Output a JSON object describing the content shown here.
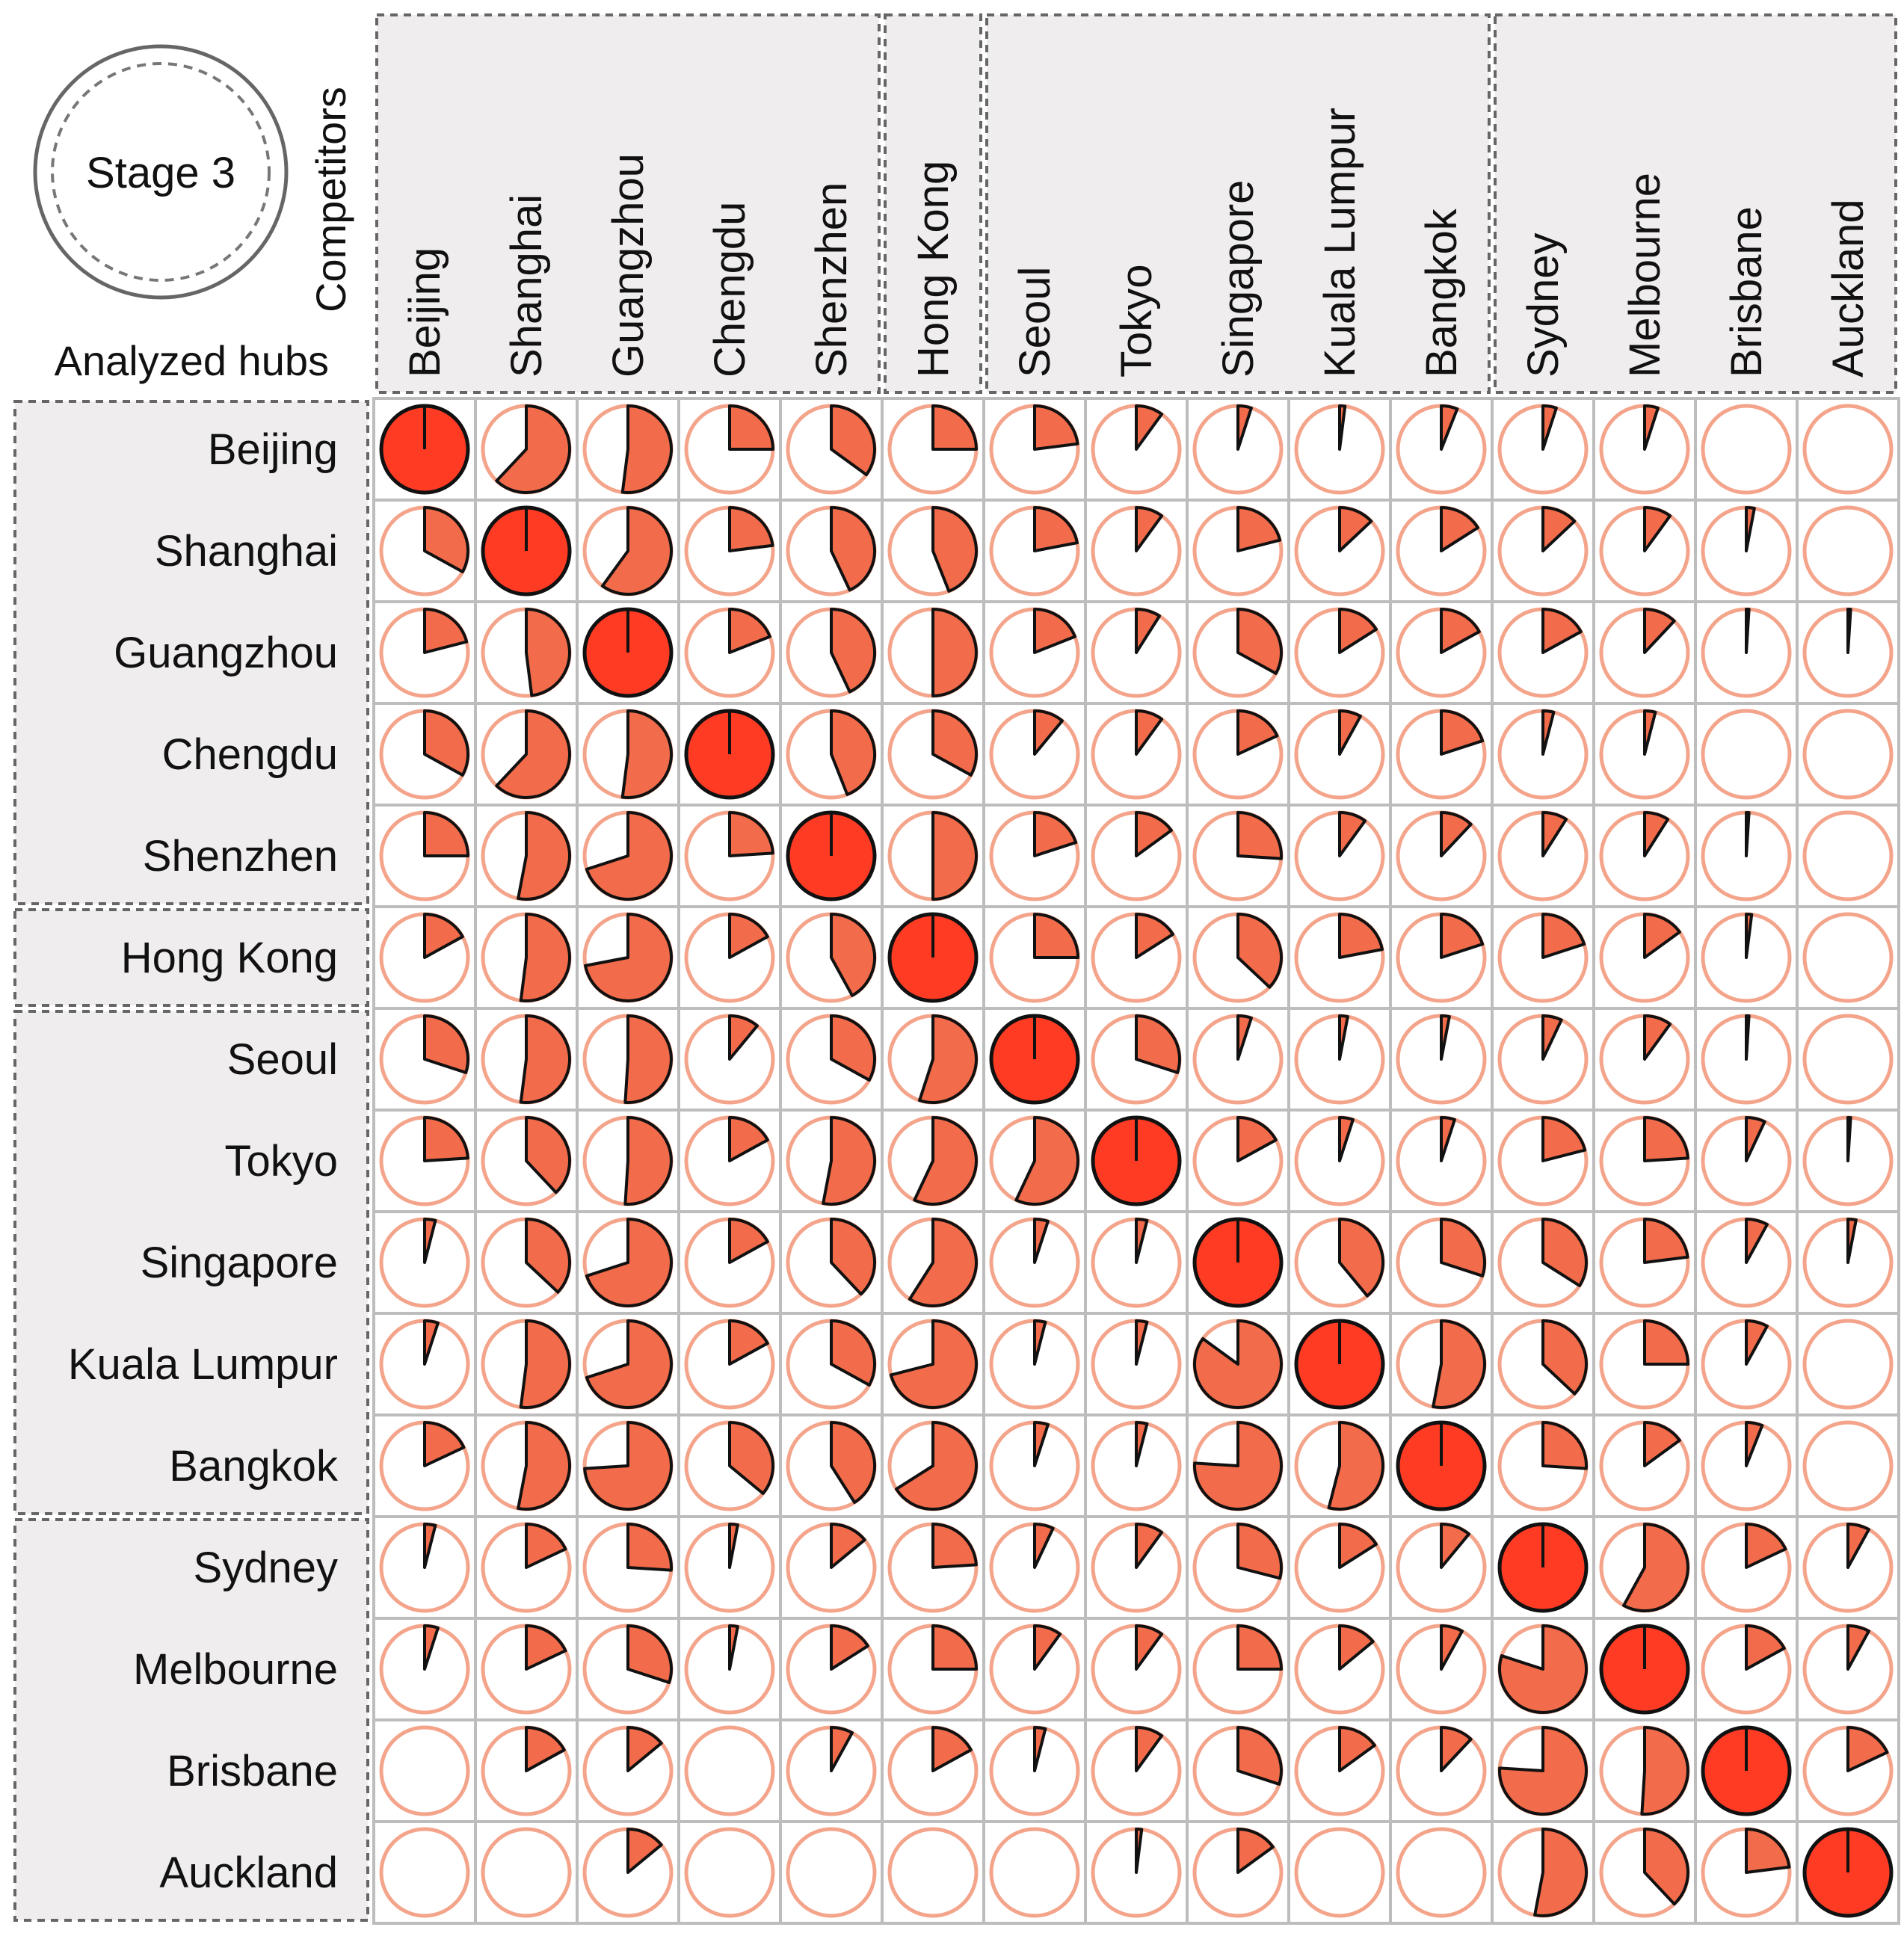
{
  "chart_data": {
    "type": "pie-matrix",
    "stage_label": "Stage 3",
    "row_axis_label": "Analyzed hubs",
    "col_axis_label": "Competitors",
    "colors": {
      "slice_fill": "#f26b4a",
      "self_fill": "#ff3b24",
      "ring": "#f4a48a",
      "slice_stroke": "#111111",
      "cell_border": "#bdbdbd",
      "group_bg": "#efedee",
      "group_border": "#666666"
    },
    "columns": [
      "Beijing",
      "Shanghai",
      "Guangzhou",
      "Chengdu",
      "Shenzhen",
      "Hong Kong",
      "Seoul",
      "Tokyo",
      "Singapore",
      "Kuala Lumpur",
      "Bangkok",
      "Sydney",
      "Melbourne",
      "Brisbane",
      "Auckland"
    ],
    "rows": [
      "Beijing",
      "Shanghai",
      "Guangzhou",
      "Chengdu",
      "Shenzhen",
      "Hong Kong",
      "Seoul",
      "Tokyo",
      "Singapore",
      "Kuala Lumpur",
      "Bangkok",
      "Sydney",
      "Melbourne",
      "Brisbane",
      "Auckland"
    ],
    "groups": [
      [
        0,
        4
      ],
      [
        5,
        5
      ],
      [
        6,
        10
      ],
      [
        11,
        14
      ]
    ],
    "values": [
      [
        1.0,
        0.62,
        0.52,
        0.25,
        0.35,
        0.25,
        0.23,
        0.1,
        0.05,
        0.02,
        0.06,
        0.05,
        0.05,
        0.0,
        0.0
      ],
      [
        0.33,
        1.0,
        0.6,
        0.23,
        0.43,
        0.44,
        0.22,
        0.1,
        0.21,
        0.13,
        0.16,
        0.13,
        0.1,
        0.03,
        0.0
      ],
      [
        0.21,
        0.48,
        1.0,
        0.19,
        0.43,
        0.5,
        0.19,
        0.09,
        0.33,
        0.16,
        0.17,
        0.17,
        0.12,
        0.01,
        0.01
      ],
      [
        0.33,
        0.62,
        0.52,
        1.0,
        0.44,
        0.33,
        0.11,
        0.1,
        0.18,
        0.08,
        0.2,
        0.04,
        0.04,
        0.0,
        0.0
      ],
      [
        0.25,
        0.53,
        0.7,
        0.24,
        1.0,
        0.5,
        0.2,
        0.15,
        0.26,
        0.1,
        0.12,
        0.09,
        0.09,
        0.01,
        0.0
      ],
      [
        0.17,
        0.52,
        0.72,
        0.17,
        0.42,
        1.0,
        0.25,
        0.16,
        0.37,
        0.22,
        0.2,
        0.2,
        0.15,
        0.02,
        0.0
      ],
      [
        0.3,
        0.52,
        0.51,
        0.11,
        0.33,
        0.55,
        1.0,
        0.3,
        0.05,
        0.03,
        0.03,
        0.07,
        0.1,
        0.01,
        0.0
      ],
      [
        0.24,
        0.38,
        0.51,
        0.17,
        0.53,
        0.57,
        0.57,
        1.0,
        0.17,
        0.05,
        0.05,
        0.21,
        0.24,
        0.07,
        0.01
      ],
      [
        0.04,
        0.37,
        0.7,
        0.17,
        0.38,
        0.59,
        0.05,
        0.04,
        1.0,
        0.39,
        0.3,
        0.34,
        0.23,
        0.08,
        0.03
      ],
      [
        0.05,
        0.52,
        0.7,
        0.17,
        0.33,
        0.71,
        0.04,
        0.04,
        0.85,
        1.0,
        0.53,
        0.37,
        0.25,
        0.08,
        0.0
      ],
      [
        0.18,
        0.53,
        0.74,
        0.36,
        0.41,
        0.66,
        0.05,
        0.04,
        0.76,
        0.54,
        1.0,
        0.26,
        0.15,
        0.06,
        0.0
      ],
      [
        0.04,
        0.18,
        0.26,
        0.03,
        0.14,
        0.24,
        0.07,
        0.1,
        0.29,
        0.16,
        0.11,
        1.0,
        0.58,
        0.18,
        0.08
      ],
      [
        0.05,
        0.18,
        0.3,
        0.03,
        0.16,
        0.25,
        0.1,
        0.1,
        0.25,
        0.14,
        0.08,
        0.8,
        1.0,
        0.17,
        0.08
      ],
      [
        0.0,
        0.17,
        0.14,
        0.0,
        0.08,
        0.17,
        0.04,
        0.1,
        0.3,
        0.15,
        0.12,
        0.76,
        0.51,
        1.0,
        0.18
      ],
      [
        0.0,
        0.0,
        0.14,
        0.0,
        0.0,
        0.0,
        0.0,
        0.02,
        0.15,
        0.0,
        0.0,
        0.53,
        0.38,
        0.23,
        1.0
      ]
    ]
  }
}
